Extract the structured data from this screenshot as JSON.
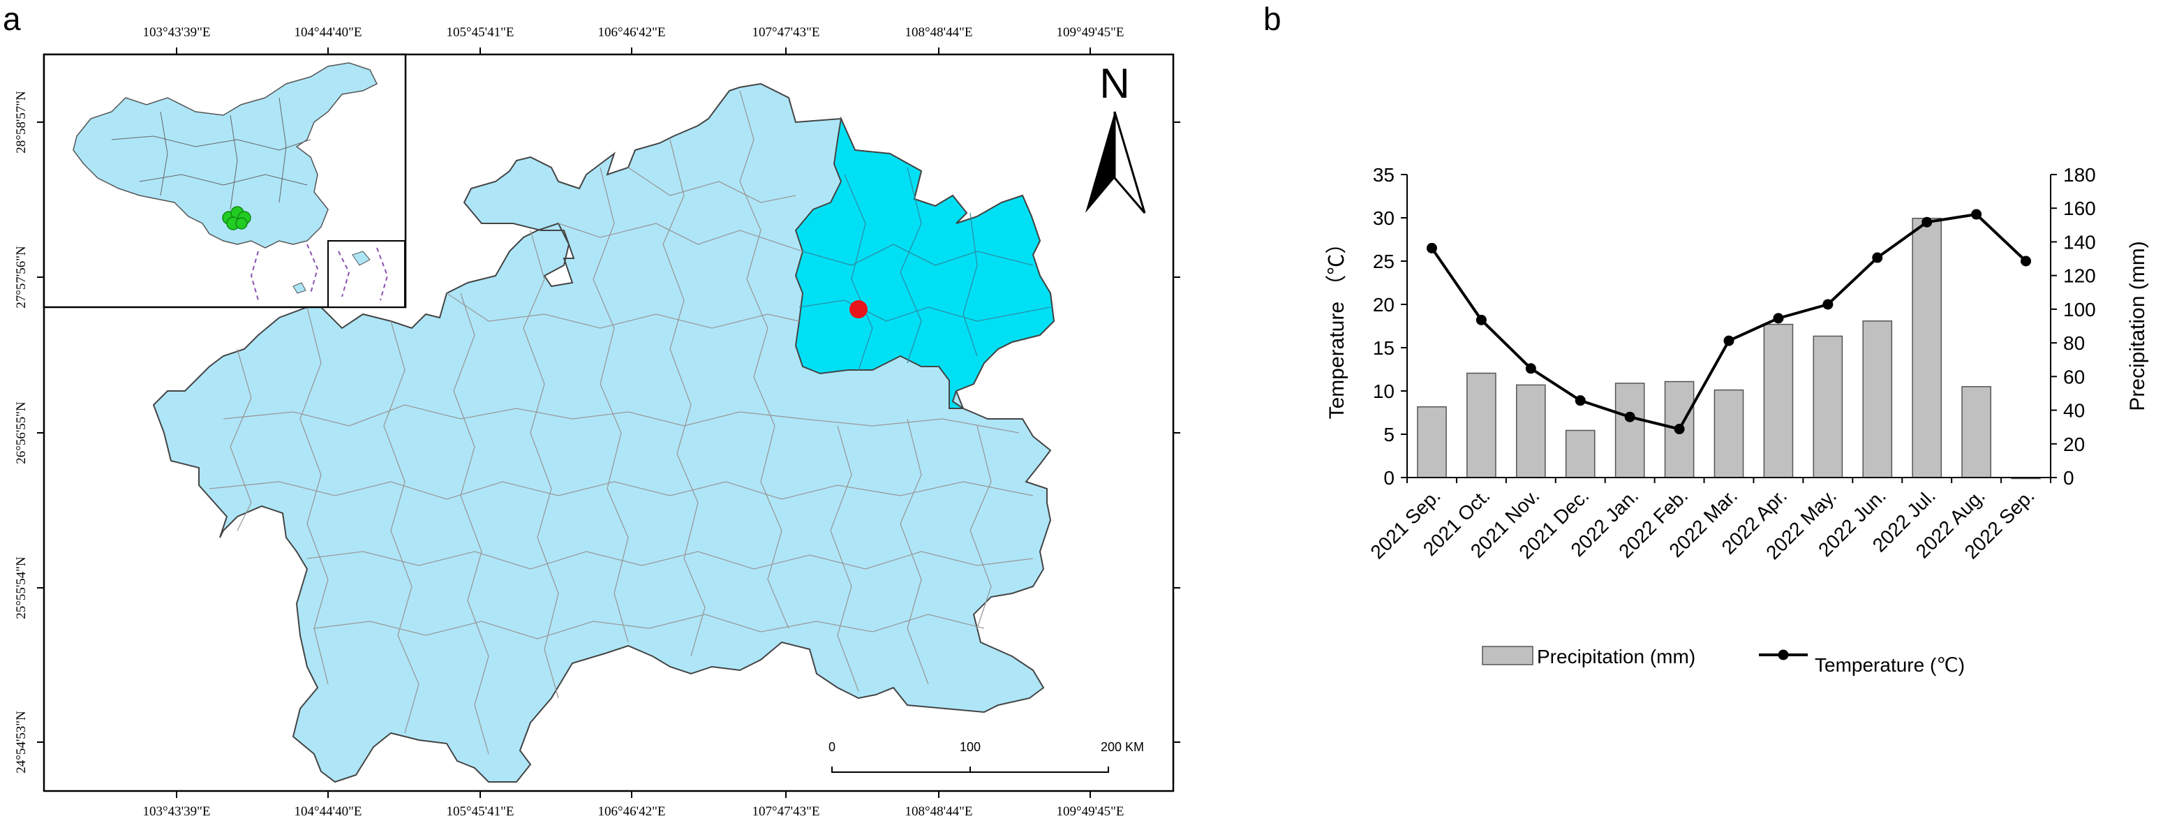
{
  "panels": {
    "a": "a",
    "b": "b"
  },
  "map": {
    "longitude_labels": [
      "103°43'39\"E",
      "104°44'40\"E",
      "105°45'41\"E",
      "106°46'42\"E",
      "107°47'43\"E",
      "108°48'44\"E",
      "109°49'45\"E"
    ],
    "latitude_labels": [
      "28°58'57\"N",
      "27°57'56\"N",
      "26°56'55\"N",
      "25°55'54\"N",
      "24°54'53\"N"
    ],
    "north_label": "N",
    "scale_labels": [
      "0",
      "100",
      "200 KM"
    ],
    "colors": {
      "province": "#aee6f8",
      "highlight": "#00e0f5",
      "site": "#e8141c",
      "inset_marker": "#22cc22",
      "border": "#444444",
      "county_line": "#999999"
    }
  },
  "chart_data": {
    "type": "bar+line",
    "categories": [
      "2021 Sep.",
      "2021 Oct.",
      "2021 Nov.",
      "2021 Dec.",
      "2022 Jan.",
      "2022 Feb.",
      "2022 Mar.",
      "2022 Apr.",
      "2022 May.",
      "2022 Jun.",
      "2022 Jul.",
      "2022 Aug.",
      "2022 Sep."
    ],
    "series": [
      {
        "name": "Precipitation (mm)",
        "type": "bar",
        "axis": "right",
        "values": [
          42,
          62,
          55,
          28,
          56,
          57,
          52,
          91,
          84,
          93,
          154,
          54,
          0
        ]
      },
      {
        "name": "Temperature (℃)",
        "type": "line",
        "axis": "left",
        "values": [
          26.5,
          18.2,
          12.6,
          8.9,
          7.0,
          5.6,
          15.8,
          18.4,
          20.0,
          25.4,
          29.5,
          30.4,
          25.0
        ]
      }
    ],
    "ylabel": "Temperature （℃）",
    "y2label": "Precipitation (mm)",
    "ylim": [
      0,
      35
    ],
    "y2lim": [
      0,
      180
    ],
    "yticks": [
      "0",
      "5",
      "10",
      "15",
      "20",
      "25",
      "30",
      "35"
    ],
    "y2ticks": [
      "0",
      "20",
      "40",
      "60",
      "80",
      "100",
      "120",
      "140",
      "160",
      "180"
    ],
    "colors": {
      "bar_fill": "#c0c0c0",
      "bar_stroke": "#555555",
      "line": "#000000"
    }
  }
}
